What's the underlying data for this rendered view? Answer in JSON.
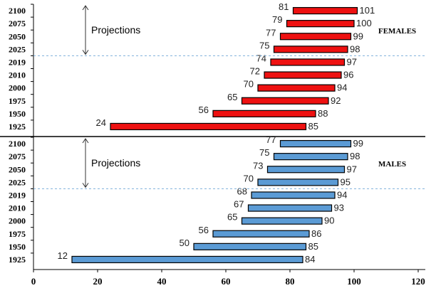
{
  "chart_data": {
    "type": "bar",
    "orientation": "horizontal-range",
    "xlim": [
      0,
      120
    ],
    "xticks": [
      0,
      20,
      40,
      60,
      80,
      100,
      120
    ],
    "grid": false,
    "panels": [
      {
        "name": "FEMALES",
        "color": "#ee1111",
        "projection_label": "Projections",
        "rows": [
          {
            "year": "2100",
            "low": 81,
            "high": 101
          },
          {
            "year": "2075",
            "low": 79,
            "high": 100
          },
          {
            "year": "2050",
            "low": 77,
            "high": 99
          },
          {
            "year": "2025",
            "low": 75,
            "high": 98
          },
          {
            "year": "2019",
            "low": 74,
            "high": 97
          },
          {
            "year": "2010",
            "low": 72,
            "high": 96
          },
          {
            "year": "2000",
            "low": 70,
            "high": 94
          },
          {
            "year": "1975",
            "low": 65,
            "high": 92
          },
          {
            "year": "1950",
            "low": 56,
            "high": 88
          },
          {
            "year": "1925",
            "low": 24,
            "high": 85
          }
        ]
      },
      {
        "name": "MALES",
        "color": "#5b9bd5",
        "projection_label": "Projections",
        "rows": [
          {
            "year": "2100",
            "low": 77,
            "high": 99
          },
          {
            "year": "2075",
            "low": 75,
            "high": 98
          },
          {
            "year": "2050",
            "low": 73,
            "high": 97
          },
          {
            "year": "2025",
            "low": 70,
            "high": 95
          },
          {
            "year": "2019",
            "low": 68,
            "high": 94
          },
          {
            "year": "2010",
            "low": 67,
            "high": 93
          },
          {
            "year": "2000",
            "low": 65,
            "high": 90
          },
          {
            "year": "1975",
            "low": 56,
            "high": 86
          },
          {
            "year": "1950",
            "low": 50,
            "high": 85
          },
          {
            "year": "1925",
            "low": 12,
            "high": 84
          }
        ]
      }
    ]
  }
}
